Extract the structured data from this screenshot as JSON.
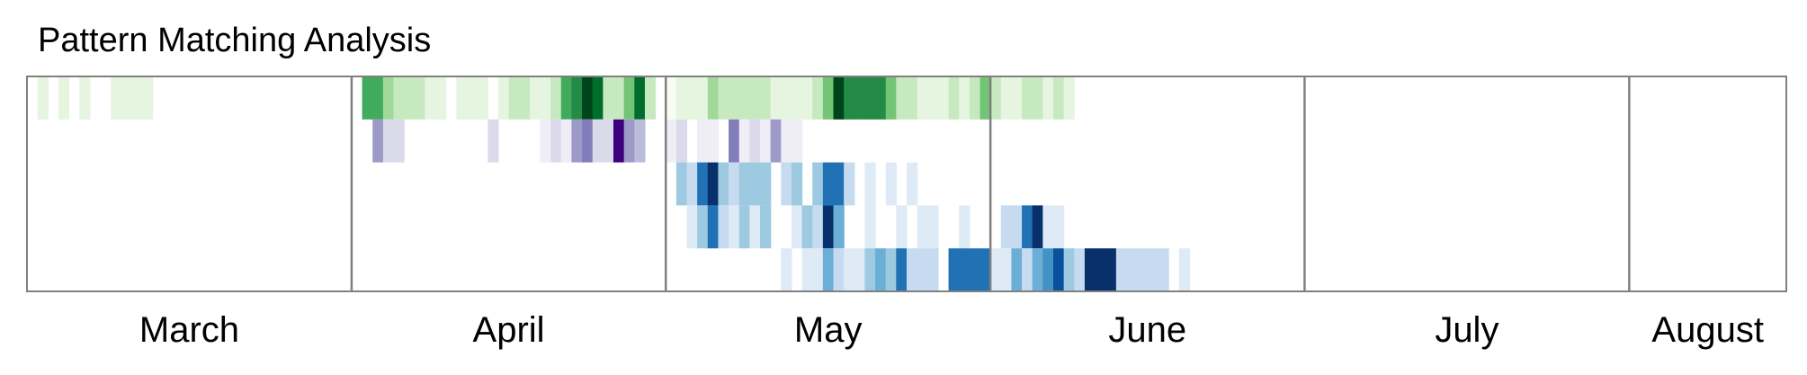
{
  "chart_data": {
    "type": "heatmap",
    "title": "Pattern Matching Analysis",
    "xlabel": "",
    "ylabel": "",
    "x_axis": {
      "type": "date",
      "start": "03-01",
      "end": "08-16",
      "tick_labels": [
        "March",
        "April",
        "May",
        "June",
        "July",
        "August"
      ]
    },
    "month_separators": [
      "04-01",
      "05-01",
      "06-01",
      "07-01",
      "08-01"
    ],
    "grid": false,
    "legend": "none",
    "rows": [
      {
        "colors": [
          "#f7fcf5",
          "#e5f5e0",
          "#c7e9c0",
          "#a1d99b",
          "#74c476",
          "#41ab5d",
          "#238b45",
          "#006d2c",
          "#00441b"
        ],
        "cells": [
          {
            "d": "03-02",
            "v": 0.1
          },
          {
            "d": "03-04",
            "v": 0.1
          },
          {
            "d": "03-06",
            "v": 0.1
          },
          {
            "d": "03-09",
            "v": 0.1
          },
          {
            "d": "03-10",
            "v": 0.1
          },
          {
            "d": "03-11",
            "v": 0.1
          },
          {
            "d": "03-12",
            "v": 0.1
          },
          {
            "d": "04-02",
            "v": 0.65
          },
          {
            "d": "04-03",
            "v": 0.65
          },
          {
            "d": "04-04",
            "v": 0.35
          },
          {
            "d": "04-05",
            "v": 0.25
          },
          {
            "d": "04-06",
            "v": 0.25
          },
          {
            "d": "04-07",
            "v": 0.25
          },
          {
            "d": "04-08",
            "v": 0.15
          },
          {
            "d": "04-09",
            "v": 0.15
          },
          {
            "d": "04-11",
            "v": 0.1
          },
          {
            "d": "04-12",
            "v": 0.1
          },
          {
            "d": "04-13",
            "v": 0.1
          },
          {
            "d": "04-15",
            "v": 0.1
          },
          {
            "d": "04-16",
            "v": 0.25
          },
          {
            "d": "04-17",
            "v": 0.25
          },
          {
            "d": "04-18",
            "v": 0.15
          },
          {
            "d": "04-19",
            "v": 0.15
          },
          {
            "d": "04-20",
            "v": 0.25
          },
          {
            "d": "04-21",
            "v": 0.65
          },
          {
            "d": "04-22",
            "v": 0.8
          },
          {
            "d": "04-23",
            "v": 1.0
          },
          {
            "d": "04-24",
            "v": 0.9
          },
          {
            "d": "04-25",
            "v": 0.25
          },
          {
            "d": "04-26",
            "v": 0.25
          },
          {
            "d": "04-27",
            "v": 0.55
          },
          {
            "d": "04-28",
            "v": 0.85
          },
          {
            "d": "04-29",
            "v": 0.25
          },
          {
            "d": "05-01",
            "v": 0.05
          },
          {
            "d": "05-02",
            "v": 0.15
          },
          {
            "d": "05-03",
            "v": 0.1
          },
          {
            "d": "05-04",
            "v": 0.1
          },
          {
            "d": "05-05",
            "v": 0.35
          },
          {
            "d": "05-06",
            "v": 0.25
          },
          {
            "d": "05-07",
            "v": 0.25
          },
          {
            "d": "05-08",
            "v": 0.25
          },
          {
            "d": "05-09",
            "v": 0.25
          },
          {
            "d": "05-10",
            "v": 0.25
          },
          {
            "d": "05-11",
            "v": 0.15
          },
          {
            "d": "05-12",
            "v": 0.15
          },
          {
            "d": "05-13",
            "v": 0.15
          },
          {
            "d": "05-14",
            "v": 0.15
          },
          {
            "d": "05-15",
            "v": 0.3
          },
          {
            "d": "05-16",
            "v": 0.45
          },
          {
            "d": "05-17",
            "v": 0.95
          },
          {
            "d": "05-18",
            "v": 0.75
          },
          {
            "d": "05-19",
            "v": 0.75
          },
          {
            "d": "05-20",
            "v": 0.75
          },
          {
            "d": "05-21",
            "v": 0.75
          },
          {
            "d": "05-22",
            "v": 0.45
          },
          {
            "d": "05-23",
            "v": 0.2
          },
          {
            "d": "05-24",
            "v": 0.2
          },
          {
            "d": "05-25",
            "v": 0.15
          },
          {
            "d": "05-26",
            "v": 0.15
          },
          {
            "d": "05-27",
            "v": 0.1
          },
          {
            "d": "05-28",
            "v": 0.25
          },
          {
            "d": "05-29",
            "v": 0.1
          },
          {
            "d": "05-30",
            "v": 0.3
          },
          {
            "d": "05-31",
            "v": 0.55
          },
          {
            "d": "06-01",
            "v": 0.25
          },
          {
            "d": "06-02",
            "v": 0.15
          },
          {
            "d": "06-03",
            "v": 0.15
          },
          {
            "d": "06-04",
            "v": 0.2
          },
          {
            "d": "06-05",
            "v": 0.2
          },
          {
            "d": "06-06",
            "v": 0.15
          },
          {
            "d": "06-07",
            "v": 0.2
          },
          {
            "d": "06-08",
            "v": 0.1
          }
        ]
      },
      {
        "colors": [
          "#fcfbfd",
          "#efedf5",
          "#dadaeb",
          "#bcbddc",
          "#9e9ac8",
          "#807dba",
          "#6a51a3",
          "#54278f",
          "#3f007d"
        ],
        "cells": [
          {
            "d": "04-03",
            "v": 0.45
          },
          {
            "d": "04-04",
            "v": 0.3
          },
          {
            "d": "04-05",
            "v": 0.3
          },
          {
            "d": "04-14",
            "v": 0.3
          },
          {
            "d": "04-19",
            "v": 0.15
          },
          {
            "d": "04-20",
            "v": 0.3
          },
          {
            "d": "04-21",
            "v": 0.15
          },
          {
            "d": "04-22",
            "v": 0.55
          },
          {
            "d": "04-23",
            "v": 0.65
          },
          {
            "d": "04-24",
            "v": 0.2
          },
          {
            "d": "04-25",
            "v": 0.2
          },
          {
            "d": "04-26",
            "v": 1.0
          },
          {
            "d": "04-27",
            "v": 0.5
          },
          {
            "d": "04-28",
            "v": 0.35
          },
          {
            "d": "05-01",
            "v": 0.15
          },
          {
            "d": "05-02",
            "v": 0.3
          },
          {
            "d": "05-04",
            "v": 0.15
          },
          {
            "d": "05-05",
            "v": 0.15
          },
          {
            "d": "05-07",
            "v": 0.65
          },
          {
            "d": "05-08",
            "v": 0.15
          },
          {
            "d": "05-09",
            "v": 0.3
          },
          {
            "d": "05-10",
            "v": 0.15
          },
          {
            "d": "05-11",
            "v": 0.5
          },
          {
            "d": "05-12",
            "v": 0.15
          },
          {
            "d": "05-13",
            "v": 0.15
          }
        ]
      },
      {
        "colors": [
          "#f7fbff",
          "#deebf7",
          "#c6dbef",
          "#9ecae1",
          "#6baed6",
          "#4292c6",
          "#2171b5",
          "#08519c",
          "#08306b"
        ],
        "cells": [
          {
            "d": "05-02",
            "v": 0.4
          },
          {
            "d": "05-03",
            "v": 0.2
          },
          {
            "d": "05-04",
            "v": 0.75
          },
          {
            "d": "05-05",
            "v": 1.0
          },
          {
            "d": "05-06",
            "v": 0.4
          },
          {
            "d": "05-07",
            "v": 0.2
          },
          {
            "d": "05-08",
            "v": 0.4
          },
          {
            "d": "05-09",
            "v": 0.4
          },
          {
            "d": "05-10",
            "v": 0.4
          },
          {
            "d": "05-12",
            "v": 0.2
          },
          {
            "d": "05-13",
            "v": 0.35
          },
          {
            "d": "05-15",
            "v": 0.4
          },
          {
            "d": "05-16",
            "v": 0.7
          },
          {
            "d": "05-17",
            "v": 0.7
          },
          {
            "d": "05-18",
            "v": 0.2
          },
          {
            "d": "05-20",
            "v": 0.15
          },
          {
            "d": "05-22",
            "v": 0.15
          },
          {
            "d": "05-24",
            "v": 0.15
          }
        ]
      },
      {
        "colors": [
          "#f7fbff",
          "#deebf7",
          "#c6dbef",
          "#9ecae1",
          "#6baed6",
          "#4292c6",
          "#2171b5",
          "#08519c",
          "#08306b"
        ],
        "cells": [
          {
            "d": "05-03",
            "v": 0.15
          },
          {
            "d": "05-04",
            "v": 0.35
          },
          {
            "d": "05-05",
            "v": 0.8
          },
          {
            "d": "05-06",
            "v": 0.25
          },
          {
            "d": "05-07",
            "v": 0.15
          },
          {
            "d": "05-08",
            "v": 0.35
          },
          {
            "d": "05-09",
            "v": 0.15
          },
          {
            "d": "05-10",
            "v": 0.35
          },
          {
            "d": "05-13",
            "v": 0.15
          },
          {
            "d": "05-14",
            "v": 0.35
          },
          {
            "d": "05-15",
            "v": 0.25
          },
          {
            "d": "05-16",
            "v": 1.0
          },
          {
            "d": "05-17",
            "v": 0.5
          },
          {
            "d": "05-20",
            "v": 0.1
          },
          {
            "d": "05-23",
            "v": 0.1
          },
          {
            "d": "05-25",
            "v": 0.15
          },
          {
            "d": "05-26",
            "v": 0.15
          },
          {
            "d": "05-29",
            "v": 0.1
          },
          {
            "d": "06-02",
            "v": 0.25
          },
          {
            "d": "06-03",
            "v": 0.25
          },
          {
            "d": "06-04",
            "v": 0.75
          },
          {
            "d": "06-05",
            "v": 1.0
          },
          {
            "d": "06-06",
            "v": 0.15
          },
          {
            "d": "06-07",
            "v": 0.1
          }
        ]
      },
      {
        "colors": [
          "#f7fbff",
          "#deebf7",
          "#c6dbef",
          "#9ecae1",
          "#6baed6",
          "#4292c6",
          "#2171b5",
          "#08519c",
          "#08306b"
        ],
        "cells": [
          {
            "d": "05-12",
            "v": 0.1
          },
          {
            "d": "05-14",
            "v": 0.15
          },
          {
            "d": "05-15",
            "v": 0.15
          },
          {
            "d": "05-16",
            "v": 0.45
          },
          {
            "d": "05-17",
            "v": 0.2
          },
          {
            "d": "05-18",
            "v": 0.15
          },
          {
            "d": "05-19",
            "v": 0.15
          },
          {
            "d": "05-20",
            "v": 0.35
          },
          {
            "d": "05-21",
            "v": 0.55
          },
          {
            "d": "05-22",
            "v": 0.35
          },
          {
            "d": "05-23",
            "v": 0.7
          },
          {
            "d": "05-24",
            "v": 0.2
          },
          {
            "d": "05-25",
            "v": 0.2
          },
          {
            "d": "05-26",
            "v": 0.2
          },
          {
            "d": "05-28",
            "v": 0.75
          },
          {
            "d": "05-29",
            "v": 0.75
          },
          {
            "d": "05-30",
            "v": 0.75
          },
          {
            "d": "05-31",
            "v": 0.75
          },
          {
            "d": "06-01",
            "v": 0.15
          },
          {
            "d": "06-02",
            "v": 0.15
          },
          {
            "d": "06-03",
            "v": 0.45
          },
          {
            "d": "06-04",
            "v": 0.2
          },
          {
            "d": "06-05",
            "v": 0.45
          },
          {
            "d": "06-06",
            "v": 0.6
          },
          {
            "d": "06-07",
            "v": 0.85
          },
          {
            "d": "06-08",
            "v": 0.35
          },
          {
            "d": "06-09",
            "v": 0.2
          },
          {
            "d": "06-10",
            "v": 0.95
          },
          {
            "d": "06-11",
            "v": 0.95
          },
          {
            "d": "06-12",
            "v": 1.0
          },
          {
            "d": "06-13",
            "v": 0.3
          },
          {
            "d": "06-14",
            "v": 0.3
          },
          {
            "d": "06-15",
            "v": 0.2
          },
          {
            "d": "06-16",
            "v": 0.2
          },
          {
            "d": "06-17",
            "v": 0.2
          },
          {
            "d": "06-19",
            "v": 0.1
          }
        ]
      }
    ]
  }
}
